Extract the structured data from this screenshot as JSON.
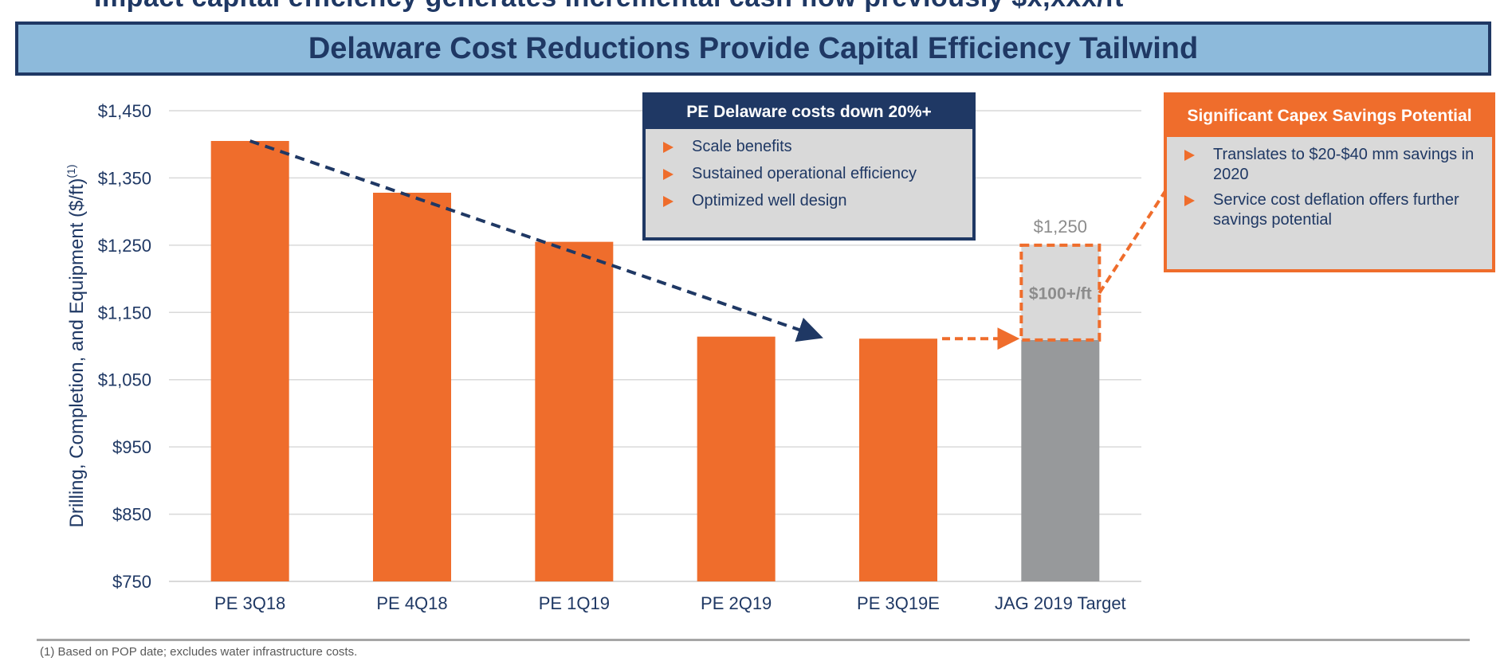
{
  "header": {
    "cutoff_line": "Impact capital efficiency generates incremental cash flow previously $x,xxx/ft",
    "title": "Delaware Cost Reductions Provide Capital Efficiency Tailwind"
  },
  "colors": {
    "navy": "#1f3864",
    "orange": "#ef6d2c",
    "gray_bar": "#97999b",
    "light_gray": "#d9d9d9",
    "title_bg": "#8dbadb"
  },
  "chart_data": {
    "type": "bar",
    "categories": [
      "PE 3Q18",
      "PE 4Q18",
      "PE 1Q19",
      "PE 2Q19",
      "PE 3Q19E",
      "JAG 2019 Target"
    ],
    "values": [
      1405,
      1328,
      1255,
      1114,
      1111,
      1109
    ],
    "target_upper": 1250,
    "target_upper_label": "$1,250",
    "savings_label": "$100+/ft",
    "ylabel": "Drilling, Completion, and Equipment ($/ft)",
    "ylabel_superscript": "(1)",
    "yticks": [
      750,
      850,
      950,
      1050,
      1150,
      1250,
      1350,
      1450
    ],
    "ytick_labels": [
      "$750",
      "$850",
      "$950",
      "$1,050",
      "$1,150",
      "$1,250",
      "$1,350",
      "$1,450"
    ],
    "ylim": [
      750,
      1450
    ],
    "grid": true,
    "trend_arrow": {
      "from_category": 0,
      "from_value": 1405,
      "to_category": 3.5,
      "to_value": 1115
    }
  },
  "callouts": {
    "delaware": {
      "title": "PE Delaware costs down 20%+",
      "items": [
        "Scale benefits",
        "Sustained operational efficiency",
        "Optimized well design"
      ]
    },
    "capex": {
      "title": "Significant Capex Savings Potential",
      "items": [
        "Translates to $20-$40 mm savings in 2020",
        "Service cost deflation offers further savings potential"
      ]
    }
  },
  "footnote": "(1) Based on POP date; excludes water infrastructure costs."
}
